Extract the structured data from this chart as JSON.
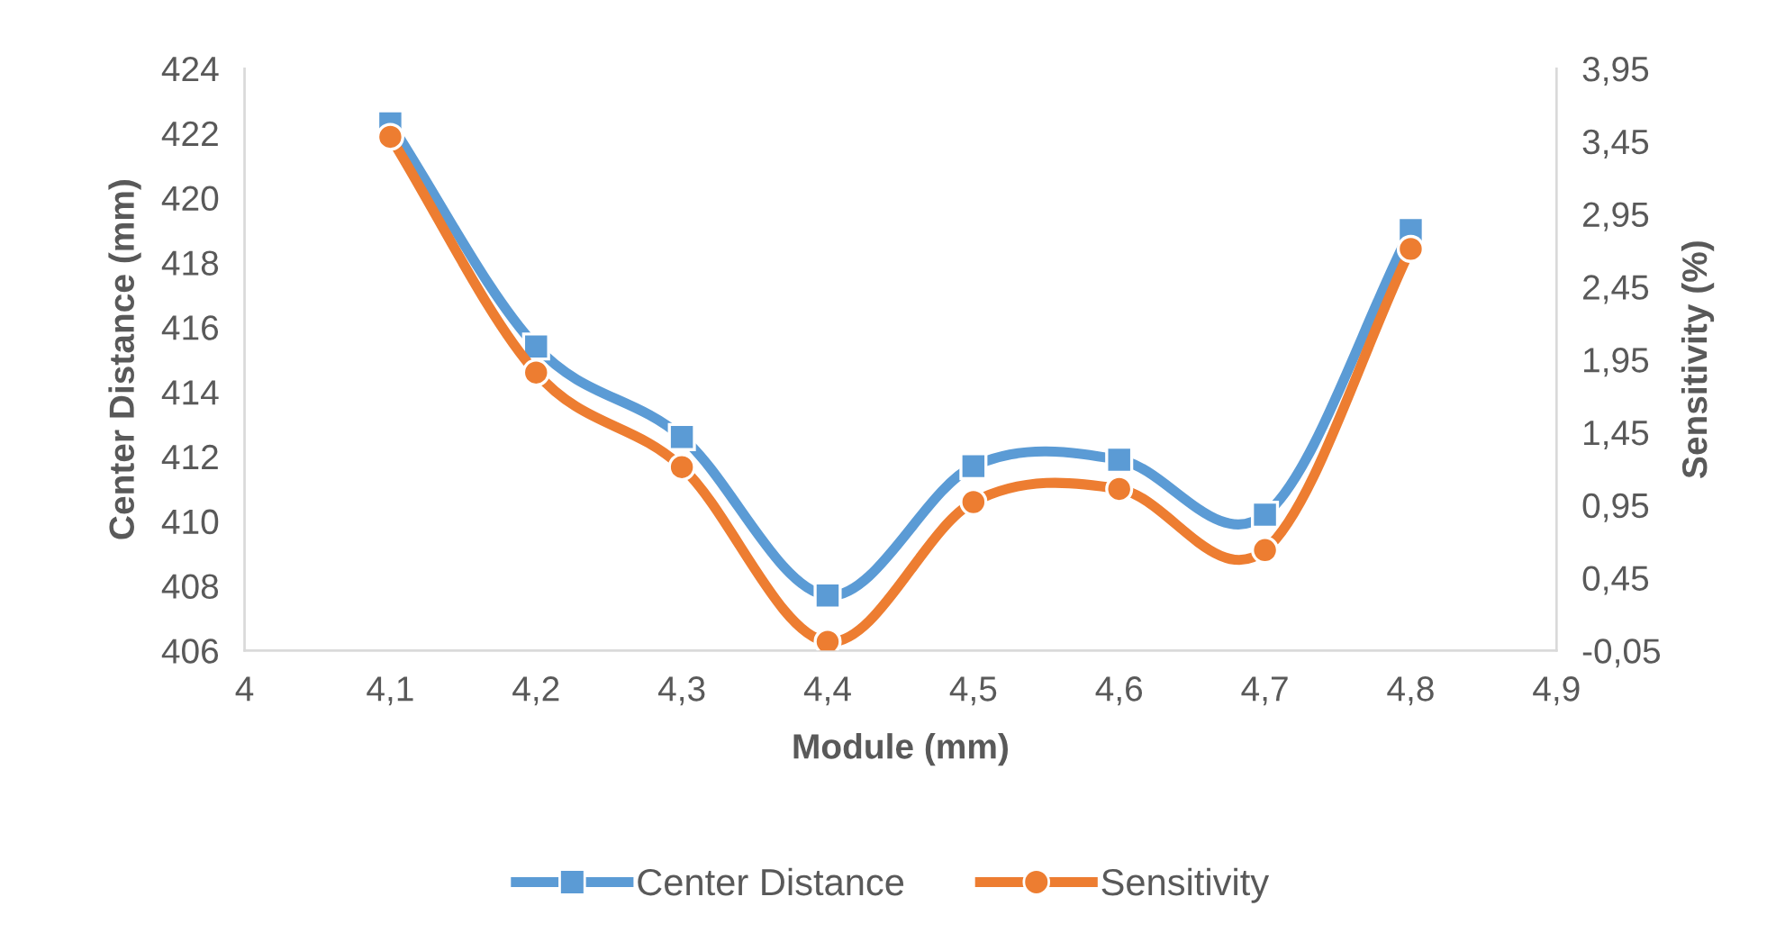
{
  "chart_data": {
    "type": "line",
    "xlabel": "Module (mm)",
    "ylabel": "Center Distance (mm)",
    "y2label": "Sensitivity (%)",
    "x": [
      4.1,
      4.2,
      4.3,
      4.4,
      4.5,
      4.6,
      4.7,
      4.8
    ],
    "series": [
      {
        "name": "Center Distance",
        "color": "#5b9bd5",
        "marker": "square",
        "values": [
          422.3,
          415.4,
          412.6,
          407.7,
          411.7,
          411.9,
          410.2,
          419.0
        ]
      },
      {
        "name": "Sensitivity",
        "color": "#ed7d31",
        "marker": "circle",
        "axis": "y2",
        "values": [
          3.48,
          1.86,
          1.21,
          0.01,
          0.97,
          1.06,
          0.64,
          2.71
        ]
      }
    ],
    "xlim": [
      4,
      4.9
    ],
    "xticks": [
      4,
      {
        "value": 4.1,
        "label": "4,1"
      },
      {
        "value": 4.2,
        "label": "4,2"
      },
      {
        "value": 4.3,
        "label": "4,3"
      },
      {
        "value": 4.4,
        "label": "4,4"
      },
      {
        "value": 4.5,
        "label": "4,5"
      },
      {
        "value": 4.6,
        "label": "4,6"
      },
      {
        "value": 4.7,
        "label": "4,7"
      },
      {
        "value": 4.8,
        "label": "4,8"
      },
      {
        "value": 4.9,
        "label": "4,9"
      }
    ],
    "ylim": [
      406,
      424
    ],
    "yticks": [
      406,
      408,
      410,
      412,
      414,
      416,
      418,
      420,
      422,
      424
    ],
    "y2lim": [
      -0.05,
      3.95
    ],
    "y2ticks": [
      {
        "value": -0.05,
        "label": "-0,05"
      },
      {
        "value": 0.45,
        "label": "0,45"
      },
      {
        "value": 0.95,
        "label": "0,95"
      },
      {
        "value": 1.45,
        "label": "1,45"
      },
      {
        "value": 1.95,
        "label": "1,95"
      },
      {
        "value": 2.45,
        "label": "2,45"
      },
      {
        "value": 2.95,
        "label": "2,95"
      },
      {
        "value": 3.45,
        "label": "3,45"
      },
      {
        "value": 3.95,
        "label": "3,95"
      }
    ],
    "grid": false,
    "legend": "bottom",
    "line_style": "solid"
  }
}
